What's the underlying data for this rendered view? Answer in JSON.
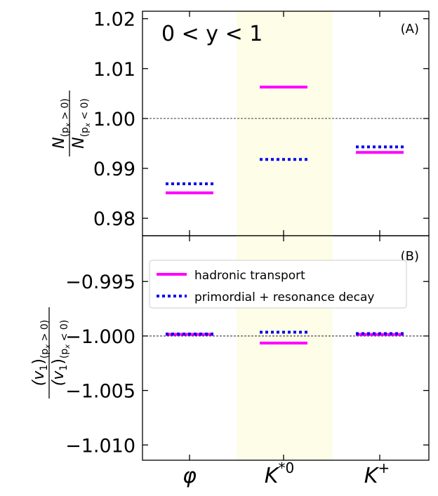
{
  "chart_data": [
    {
      "type": "line",
      "panel_label": "(A)",
      "annotation": "0 < y < 1",
      "ylabel": "N(px>0) / N(px<0)",
      "ylabel_num": "N",
      "ylabel_num_sub": "(p",
      "ylabel_num_subsub": "x",
      "ylabel_num_tail": " > 0)",
      "ylabel_den": "N",
      "ylabel_den_sub": "(p",
      "ylabel_den_subsub": "x",
      "ylabel_den_tail": " < 0)",
      "ylim": [
        0.9765,
        1.0215
      ],
      "yticks": [
        0.98,
        0.99,
        1.0,
        1.01,
        1.02
      ],
      "ytick_labels": [
        "0.98",
        "0.99",
        "1.00",
        "1.01",
        "1.02"
      ],
      "reference_line": 1.0,
      "categories": [
        "φ",
        "K*0",
        "K+"
      ],
      "series": [
        {
          "name": "hadronic transport",
          "values": [
            0.9851,
            1.0063,
            0.9932
          ]
        },
        {
          "name": "primordial + resonance decay",
          "values": [
            0.9869,
            0.9918,
            0.9943
          ]
        }
      ]
    },
    {
      "type": "line",
      "panel_label": "(B)",
      "ylabel": "(v1)(px>0) / (v1)(px<0)",
      "ylabel_num": "(v",
      "ylabel_num_sub1": "1",
      "ylabel_num_mid": ")",
      "ylabel_num_sub": "(p",
      "ylabel_num_subsub": "x",
      "ylabel_num_tail": " > 0)",
      "ylabel_den": "(v",
      "ylabel_den_sub1": "1",
      "ylabel_den_mid": ")",
      "ylabel_den_sub": "(p",
      "ylabel_den_subsub": "x",
      "ylabel_den_tail": " < 0)",
      "ylim": [
        -1.0114,
        -0.9908
      ],
      "yticks": [
        -1.01,
        -1.005,
        -1.0,
        -0.995
      ],
      "ytick_labels": [
        "−1.010",
        "−1.005",
        "−1.000",
        "−0.995"
      ],
      "reference_line": -1.0,
      "categories": [
        "φ",
        "K*0",
        "K+"
      ],
      "series": [
        {
          "name": "hadronic transport",
          "values": [
            -0.99985,
            -1.00065,
            -0.99986
          ]
        },
        {
          "name": "primordial + resonance decay",
          "values": [
            -0.99982,
            -0.99965,
            -0.99978
          ]
        }
      ],
      "legend": {
        "placement": "top-left",
        "entries": [
          "hadronic transport",
          "primordial + resonance decay"
        ]
      }
    }
  ],
  "x_axis": {
    "category_labels": [
      {
        "base": "φ",
        "sup": ""
      },
      {
        "base": "K",
        "sup": "*0"
      },
      {
        "base": "K",
        "sup": "+"
      }
    ]
  },
  "colors": {
    "hadronic": "#ff00ff",
    "primordial": "#0000ee",
    "highlight": "#fdfde8",
    "axes": "#000000"
  }
}
